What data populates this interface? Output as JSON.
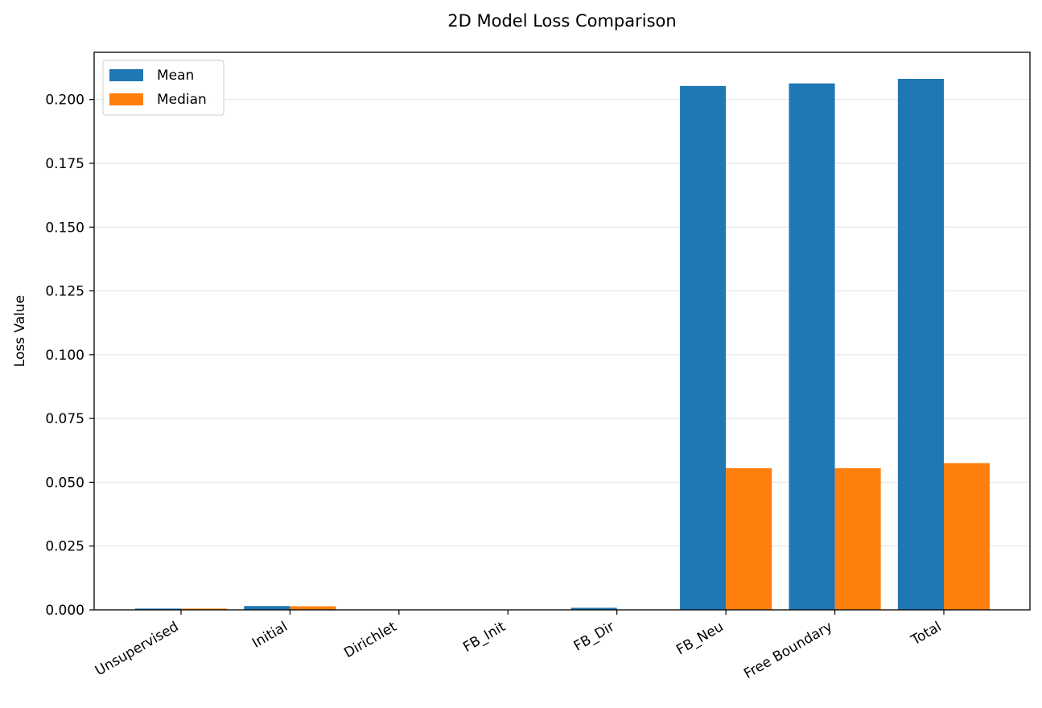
{
  "chart_data": {
    "type": "bar",
    "title": "2D Model Loss Comparison",
    "xlabel": "",
    "ylabel": "Loss Value",
    "categories": [
      "Unsupervised",
      "Initial",
      "Dirichlet",
      "FB_Init",
      "FB_Dir",
      "FB_Neu",
      "Free Boundary",
      "Total"
    ],
    "series": [
      {
        "name": "Mean",
        "color": "#1f77b4",
        "values": [
          0.0005,
          0.0015,
          0.0001,
          0.0001,
          0.0008,
          0.2053,
          0.2063,
          0.2081
        ]
      },
      {
        "name": "Median",
        "color": "#ff7f0e",
        "values": [
          0.0005,
          0.0014,
          0.0001,
          0.0001,
          0.0001,
          0.0555,
          0.0555,
          0.0575
        ]
      }
    ],
    "ylim": [
      0,
      0.2185
    ],
    "yticks": [
      0.0,
      0.025,
      0.05,
      0.075,
      0.1,
      0.125,
      0.15,
      0.175,
      0.2
    ],
    "ytick_labels": [
      "0.000",
      "0.025",
      "0.050",
      "0.075",
      "0.100",
      "0.125",
      "0.150",
      "0.175",
      "0.200"
    ],
    "grid": "y",
    "legend": "top-left"
  }
}
